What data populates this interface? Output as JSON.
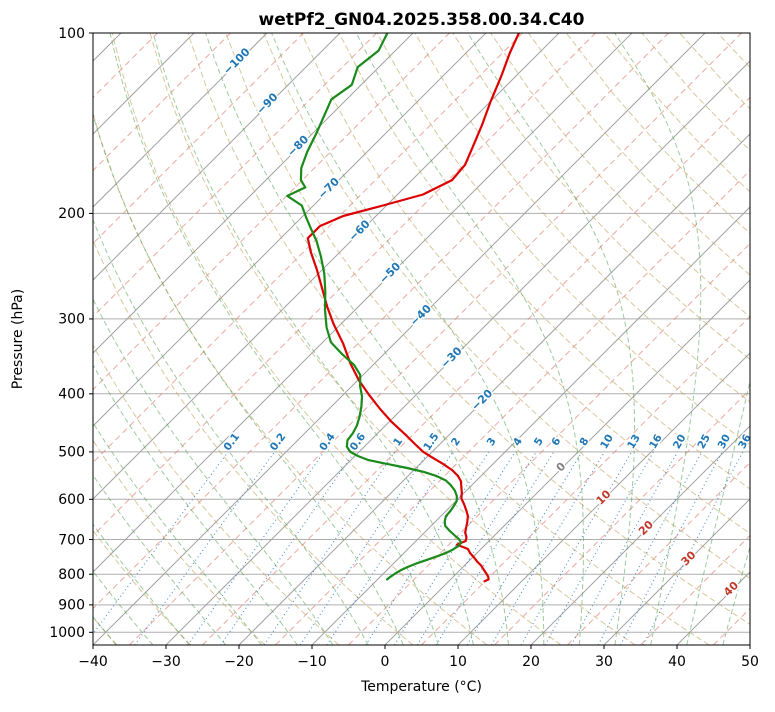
{
  "title": "wetPf2_GN04.2025.358.00.34.C40",
  "axes": {
    "x_label": "Temperature (°C)",
    "y_label": "Pressure (hPa)",
    "x_ticks": [
      -40,
      -30,
      -20,
      -10,
      0,
      10,
      20,
      30,
      40,
      50
    ],
    "y_ticks": [
      100,
      200,
      300,
      400,
      500,
      600,
      700,
      800,
      900,
      1000
    ]
  },
  "chart_data": {
    "type": "line",
    "diagram_kind": "skew-T log-p thermodynamic diagram",
    "x_range_c": [
      -40,
      50
    ],
    "p_range_hpa": [
      100,
      1050
    ],
    "skew_deg": 45,
    "isotherm_step_c": 10,
    "isotherm_minor_step_c": 5,
    "isotherm_labels": {
      "negative": [
        -100,
        -90,
        -80,
        -70,
        -60,
        -50,
        -40,
        -30,
        -20
      ],
      "zero": 0,
      "positive": [
        10,
        20,
        30,
        40
      ]
    },
    "dry_adiabats_theta_c": [
      -40,
      -30,
      -20,
      -10,
      0,
      10,
      20,
      30,
      40,
      50,
      60,
      70,
      80,
      90,
      100,
      110,
      120,
      130,
      140,
      150,
      160,
      170,
      180,
      190
    ],
    "moist_adiabats_thetaw_c": [
      -40,
      -35,
      -30,
      -25,
      -20,
      -15,
      -10,
      -5,
      0,
      5,
      10,
      15,
      20,
      25,
      30,
      35,
      40,
      45
    ],
    "mixing_ratio_g_per_kg": [
      0.1,
      0.2,
      0.4,
      0.6,
      1,
      1.5,
      2,
      3,
      4,
      5,
      6,
      8,
      10,
      13,
      16,
      20,
      25,
      30,
      36
    ],
    "series": [
      {
        "name": "temperature",
        "color": "#dd0000",
        "pressure_hpa": [
          100,
          108,
          118,
          130,
          142,
          155,
          166,
          176,
          186,
          194,
          202,
          210,
          220,
          232,
          248,
          266,
          286,
          306,
          330,
          356,
          380,
          402,
          424,
          446,
          468,
          486,
          500,
          512,
          524,
          536,
          548,
          560,
          572,
          584,
          598,
          612,
          626,
          640,
          654,
          668,
          682,
          694,
          704,
          714,
          726,
          738,
          750,
          762,
          774,
          786,
          798,
          808,
          816,
          822
        ],
        "value_c": [
          -65.5,
          -64,
          -62,
          -60,
          -58,
          -56.2,
          -54.8,
          -54.5,
          -56.5,
          -60.5,
          -64.5,
          -66.3,
          -66.3,
          -64,
          -60.8,
          -57.6,
          -54.3,
          -51,
          -47,
          -43.3,
          -39.8,
          -36.4,
          -33,
          -29.6,
          -26,
          -23.3,
          -21.2,
          -19,
          -16.8,
          -14.8,
          -13.2,
          -12,
          -11.2,
          -10.4,
          -9.6,
          -8.4,
          -7.3,
          -6.3,
          -5.6,
          -5,
          -4.4,
          -3.6,
          -3.2,
          -3.9,
          -1.8,
          -0.9,
          0.2,
          1.2,
          2.3,
          3.2,
          4.1,
          4.8,
          5.2,
          4.9
        ]
      },
      {
        "name": "dewpoint",
        "color": "#1a8a1a",
        "pressure_hpa": [
          100,
          107,
          114,
          122,
          129,
          137,
          147,
          158,
          168,
          176,
          181,
          187,
          194,
          203,
          212,
          222,
          236,
          252,
          270,
          290,
          310,
          328,
          344,
          358,
          372,
          388,
          404,
          420,
          436,
          452,
          466,
          478,
          490,
          500,
          508,
          516,
          524,
          532,
          540,
          548,
          558,
          568,
          580,
          592,
          604,
          616,
          628,
          640,
          652,
          664,
          676,
          688,
          698,
          708,
          718,
          728,
          738,
          748,
          758,
          768,
          778,
          788,
          798,
          808,
          816
        ],
        "value_c": [
          -83.5,
          -82.3,
          -82.9,
          -81.3,
          -82.1,
          -80.9,
          -79.5,
          -78.2,
          -76.8,
          -75.2,
          -73.6,
          -74.9,
          -71.6,
          -69.4,
          -67.2,
          -64.8,
          -62,
          -59.2,
          -56.6,
          -54.1,
          -51.5,
          -48.9,
          -45.6,
          -42.6,
          -40.4,
          -38.9,
          -37.2,
          -35.9,
          -34.8,
          -33.9,
          -33.4,
          -33.2,
          -32.4,
          -31.2,
          -29.6,
          -27.6,
          -24.4,
          -21.2,
          -18.4,
          -16.2,
          -14.2,
          -12.9,
          -11.6,
          -10.6,
          -9.9,
          -9.6,
          -9.4,
          -9.3,
          -8.8,
          -8.1,
          -6.9,
          -5.6,
          -4.5,
          -3.6,
          -3.5,
          -3.8,
          -4.3,
          -5.1,
          -6,
          -6.9,
          -7.6,
          -8.1,
          -8.4,
          -8.6,
          -8.7
        ]
      }
    ],
    "colors": {
      "grid": "#a6a6a6",
      "isotherm": "#a3a3a3",
      "isotherm_minor": "#e4796b",
      "dry_adiabat": "#c2a05c",
      "moist_adiabat": "#4f9e4f",
      "mixing": "#3b82c4",
      "mixing_label": "#1f77b4",
      "isotherm_label_neg": "#1f77b4",
      "isotherm_label_zero": "#808080",
      "isotherm_label_pos": "#c0392b",
      "spine": "#000000"
    }
  }
}
